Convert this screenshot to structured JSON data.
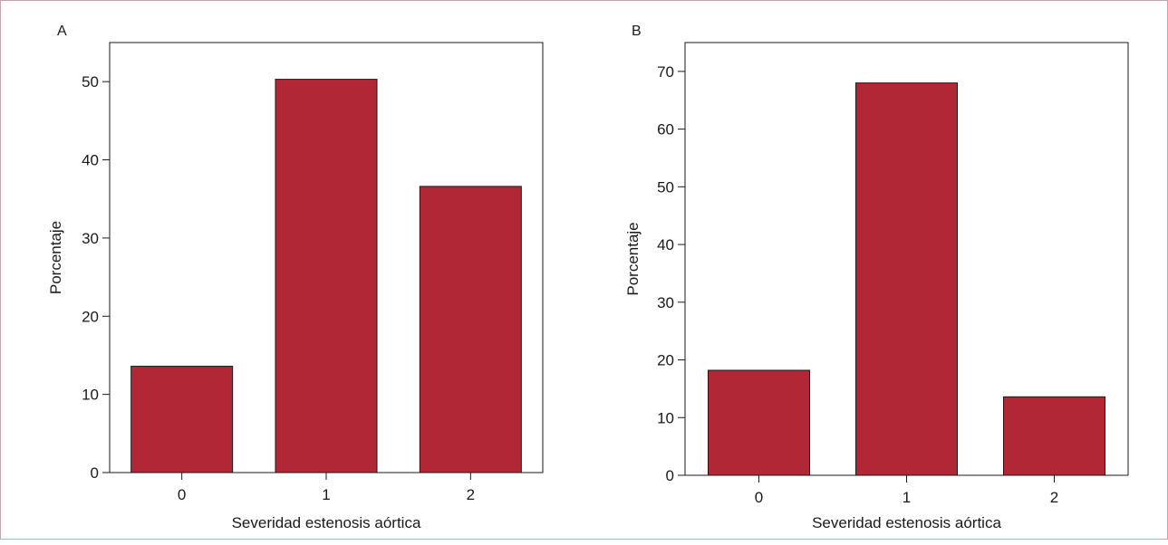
{
  "colors": {
    "bar": "#b12735",
    "bar_stroke": "#1a1a1a",
    "frame": "#c8a3ab",
    "axis": "#1a1a1a"
  },
  "chart_data": [
    {
      "panel": "A",
      "type": "bar",
      "categories": [
        "0",
        "1",
        "2"
      ],
      "values": [
        13.6,
        50.3,
        36.6
      ],
      "xlabel": "Severidad estenosis aórtica",
      "ylabel": "Porcentaje",
      "ylim": [
        0,
        55
      ],
      "yticks": [
        0,
        10,
        20,
        30,
        40,
        50
      ],
      "grid": false
    },
    {
      "panel": "B",
      "type": "bar",
      "categories": [
        "0",
        "1",
        "2"
      ],
      "values": [
        18.2,
        68.0,
        13.6
      ],
      "xlabel": "Severidad estenosis aórtica",
      "ylabel": "Porcentaje",
      "ylim": [
        0,
        75
      ],
      "yticks": [
        0,
        10,
        20,
        30,
        40,
        50,
        60,
        70
      ],
      "grid": false
    }
  ]
}
